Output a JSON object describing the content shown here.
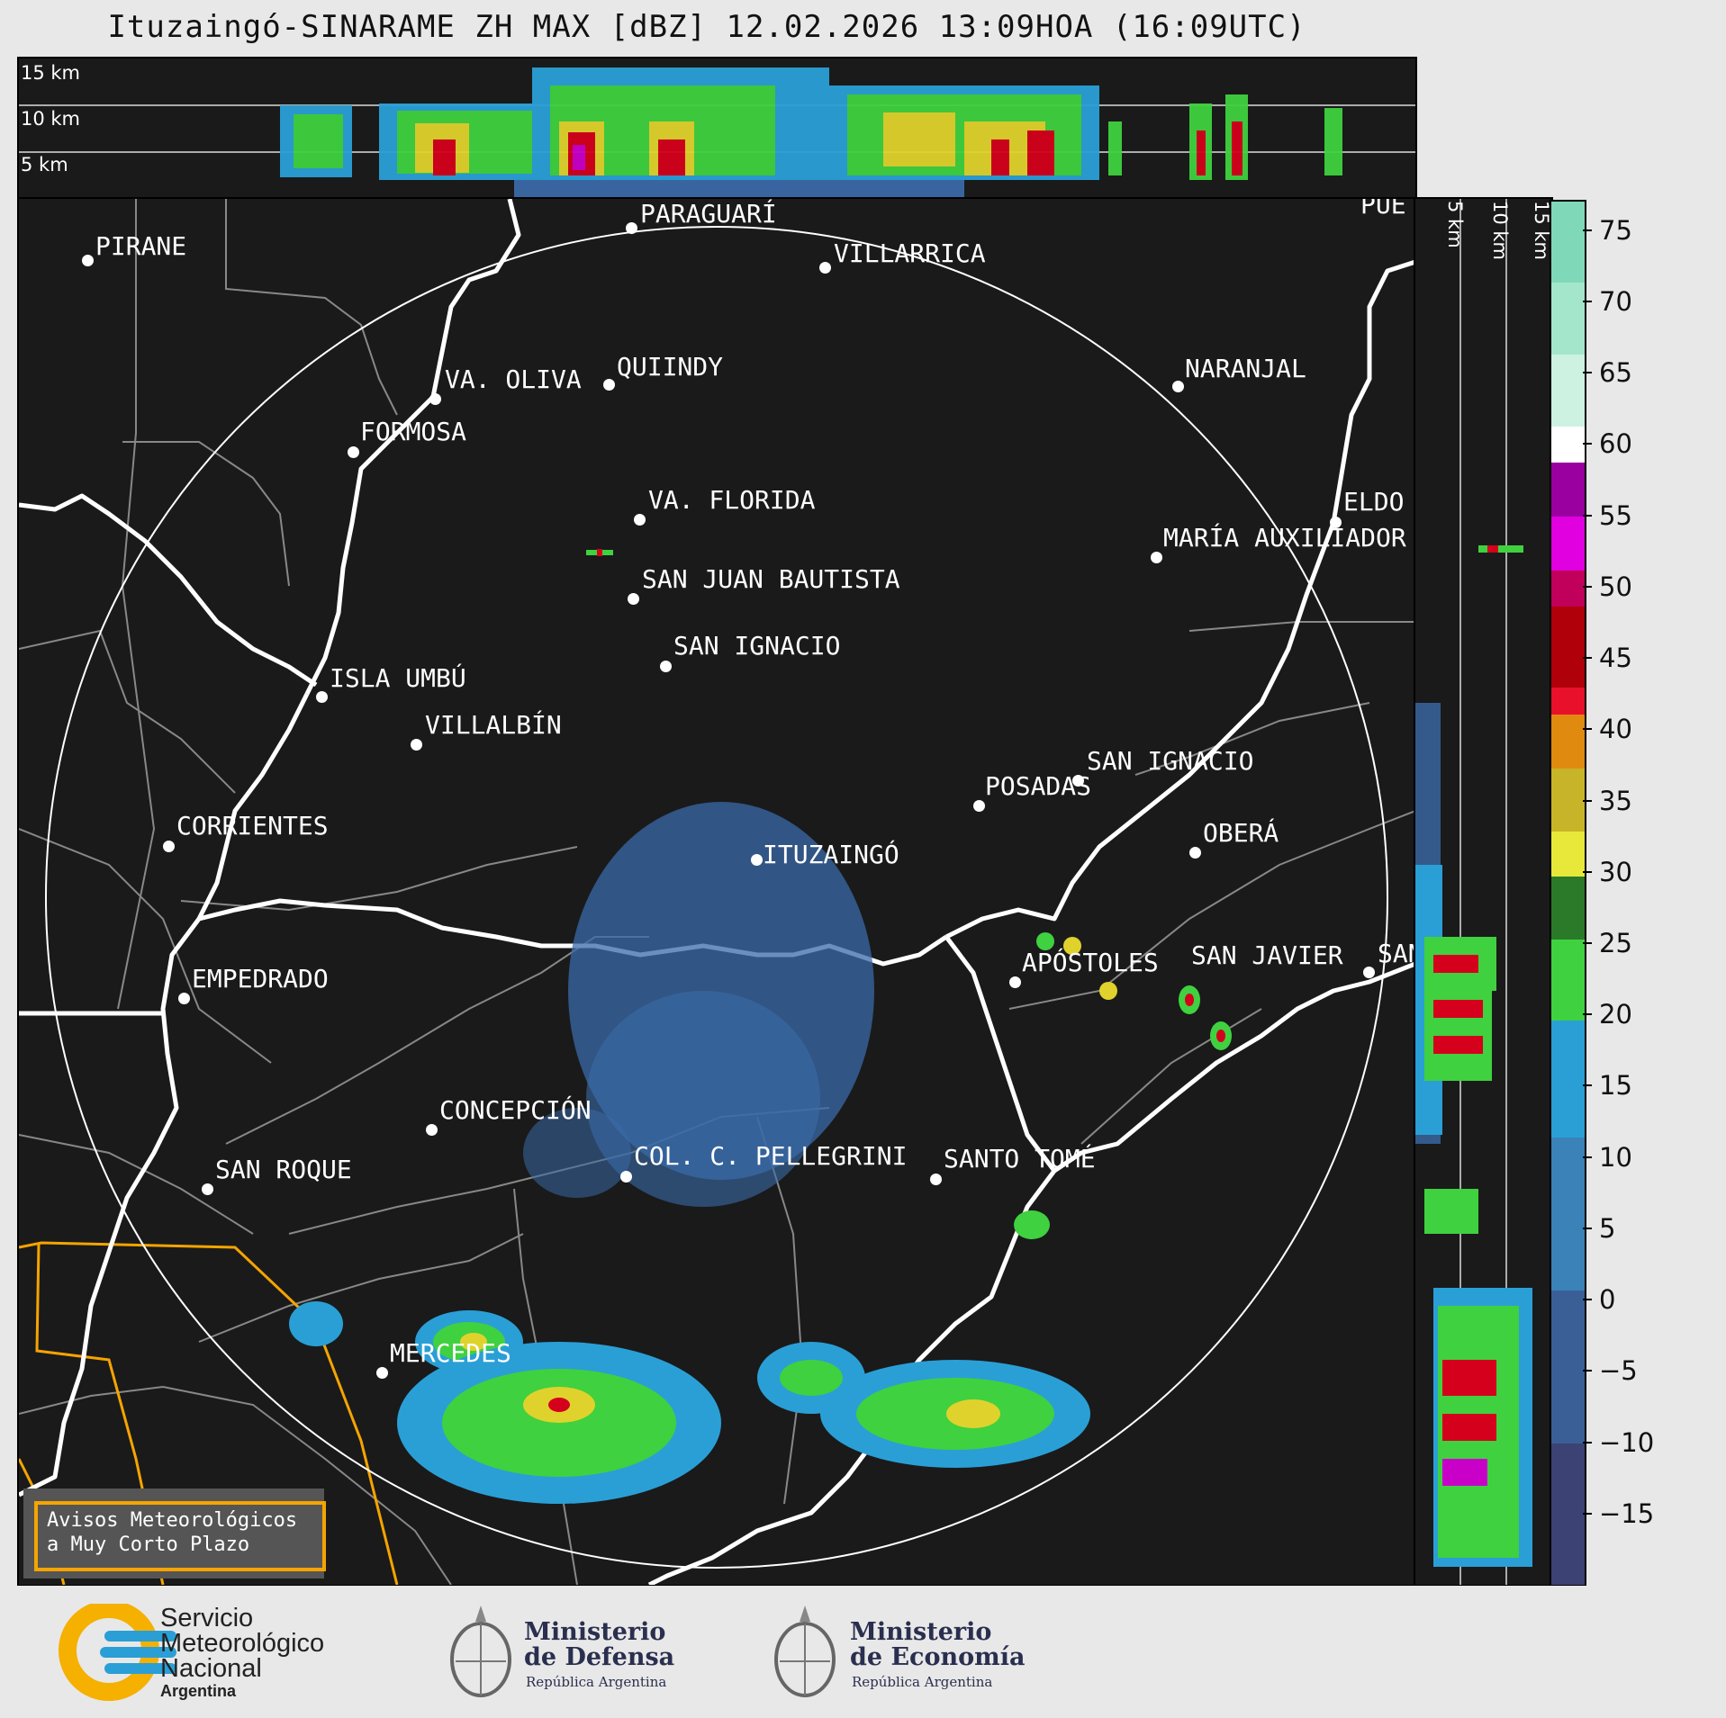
{
  "title": "Ituzaingó-SINARAME ZH MAX [dBZ] 12.02.2026 13:09HOA (16:09UTC)",
  "top_panel": {
    "alt_labels": [
      "15 km",
      "10 km",
      "5 km"
    ]
  },
  "side_panel": {
    "alt_labels": [
      "5 km",
      "10 km",
      "15 km"
    ]
  },
  "colorbar": {
    "unit": "dBZ",
    "ticks": [
      "75",
      "70",
      "65",
      "60",
      "55",
      "50",
      "45",
      "40",
      "35",
      "30",
      "25",
      "20",
      "15",
      "10",
      "5",
      "0",
      "−5",
      "−10",
      "−15"
    ],
    "range": [
      -20,
      77
    ]
  },
  "cities": [
    {
      "name": "PIRANE"
    },
    {
      "name": "PARAGUARÍ"
    },
    {
      "name": "VILLARRICA"
    },
    {
      "name": "PUE"
    },
    {
      "name": "VA. OLIVA"
    },
    {
      "name": "QUIINDY"
    },
    {
      "name": "NARANJAL"
    },
    {
      "name": "FORMOSA"
    },
    {
      "name": "VA. FLORIDA"
    },
    {
      "name": "ELDO"
    },
    {
      "name": "MARÍA AUXILIADOR"
    },
    {
      "name": "SAN JUAN BAUTISTA"
    },
    {
      "name": "SAN IGNACIO"
    },
    {
      "name": "ISLA UMBÚ"
    },
    {
      "name": "VILLALBÍN"
    },
    {
      "name": "SAN IGNACIO"
    },
    {
      "name": "POSADAS"
    },
    {
      "name": "CORRIENTES"
    },
    {
      "name": "ITUZAINGÓ"
    },
    {
      "name": "OBERÁ"
    },
    {
      "name": "APÓSTOLES"
    },
    {
      "name": "SAN JAVIER"
    },
    {
      "name": "SAN"
    },
    {
      "name": "EMPEDRADO"
    },
    {
      "name": "CONCEPCIÓN"
    },
    {
      "name": "COL. C. PELLEGRINI"
    },
    {
      "name": "SANTO TOMÉ"
    },
    {
      "name": "SAN ROQUE"
    },
    {
      "name": "MERCEDES"
    }
  ],
  "avisos": {
    "line1": "Avisos Meteorológicos",
    "line2": "a Muy Corto Plazo"
  },
  "footer": {
    "smn": {
      "line1": "Servicio",
      "line2": "Meteorológico",
      "line3": "Nacional",
      "line4": "Argentina"
    },
    "defensa": {
      "line1": "Ministerio",
      "line2": "de Defensa",
      "line3": "República Argentina"
    },
    "economia": {
      "line1": "Ministerio",
      "line2": "de Economía",
      "line3": "República Argentina"
    }
  },
  "colors": {
    "background": "#1a1a1a",
    "warning_border": "#f5a400",
    "smn_blue": "#2a9fd6",
    "smn_yellow": "#f5b000"
  }
}
